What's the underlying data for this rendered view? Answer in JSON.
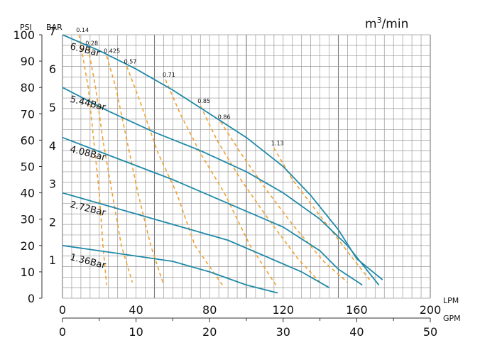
{
  "chart_data": {
    "type": "line",
    "units": {
      "psi": "PSI",
      "bar": "BAR",
      "lpm": "LPM",
      "gpm": "GPM",
      "air_base": "m",
      "air_sup": "3",
      "air_tail": "/min"
    },
    "x_lpm_ticks": [
      "0",
      "40",
      "80",
      "120",
      "160",
      "200"
    ],
    "x_gpm_ticks": [
      "0",
      "10",
      "20",
      "30",
      "40",
      "50"
    ],
    "y_psi_ticks": [
      "0",
      "10",
      "20",
      "30",
      "40",
      "50",
      "60",
      "70",
      "80",
      "90",
      "100"
    ],
    "y_bar_ticks": [
      "1",
      "2",
      "3",
      "4",
      "5",
      "6",
      "7"
    ],
    "xlim_lpm": [
      0,
      200
    ],
    "ylim_psi": [
      0,
      100
    ],
    "grid": true,
    "colors": {
      "pressure": "#1f8aa8",
      "air": "#f0a030",
      "grid": "#999999"
    },
    "series": [
      {
        "name": "6.9Bar",
        "points": [
          [
            0,
            100
          ],
          [
            20,
            94
          ],
          [
            40,
            87
          ],
          [
            60,
            79
          ],
          [
            80,
            70
          ],
          [
            100,
            61
          ],
          [
            120,
            50
          ],
          [
            135,
            39
          ],
          [
            150,
            26
          ],
          [
            160,
            15
          ],
          [
            174,
            7
          ]
        ]
      },
      {
        "name": "5.44Bar",
        "points": [
          [
            0,
            80
          ],
          [
            25,
            71
          ],
          [
            50,
            63
          ],
          [
            75,
            56
          ],
          [
            100,
            48
          ],
          [
            120,
            40
          ],
          [
            140,
            30
          ],
          [
            155,
            20
          ],
          [
            172,
            5
          ]
        ]
      },
      {
        "name": "4.08Bar",
        "points": [
          [
            0,
            61
          ],
          [
            30,
            53
          ],
          [
            60,
            45
          ],
          [
            90,
            36
          ],
          [
            120,
            27
          ],
          [
            140,
            18
          ],
          [
            150,
            11
          ],
          [
            163,
            5
          ]
        ]
      },
      {
        "name": "2.72Bar",
        "points": [
          [
            0,
            40
          ],
          [
            30,
            34
          ],
          [
            60,
            28
          ],
          [
            90,
            22
          ],
          [
            110,
            16
          ],
          [
            130,
            10
          ],
          [
            145,
            4
          ]
        ]
      },
      {
        "name": "1.36Bar",
        "points": [
          [
            0,
            20
          ],
          [
            30,
            17
          ],
          [
            60,
            14
          ],
          [
            80,
            10
          ],
          [
            100,
            5
          ],
          [
            117,
            2
          ]
        ]
      }
    ],
    "air_series": [
      {
        "name": "0.14",
        "points": [
          [
            9,
            100
          ],
          [
            14,
            80
          ],
          [
            17,
            60
          ],
          [
            20,
            40
          ],
          [
            22,
            20
          ],
          [
            24,
            5
          ]
        ]
      },
      {
        "name": "0.28",
        "points": [
          [
            14,
            95
          ],
          [
            18,
            80
          ],
          [
            22,
            60
          ],
          [
            27,
            40
          ],
          [
            32,
            20
          ],
          [
            38,
            6
          ]
        ]
      },
      {
        "name": "0.425",
        "points": [
          [
            24,
            92
          ],
          [
            29,
            80
          ],
          [
            35,
            60
          ],
          [
            41,
            40
          ],
          [
            48,
            20
          ],
          [
            55,
            5
          ]
        ]
      },
      {
        "name": "0.57",
        "points": [
          [
            35,
            88
          ],
          [
            42,
            75
          ],
          [
            52,
            55
          ],
          [
            62,
            40
          ],
          [
            72,
            20
          ],
          [
            88,
            4
          ]
        ]
      },
      {
        "name": "0.71",
        "points": [
          [
            56,
            83
          ],
          [
            64,
            70
          ],
          [
            75,
            55
          ],
          [
            88,
            40
          ],
          [
            102,
            20
          ],
          [
            117,
            4
          ]
        ]
      },
      {
        "name": "0.85",
        "points": [
          [
            75,
            73
          ],
          [
            84,
            60
          ],
          [
            97,
            45
          ],
          [
            112,
            30
          ],
          [
            128,
            15
          ],
          [
            140,
            6
          ]
        ]
      },
      {
        "name": "0.86",
        "points": [
          [
            86,
            67
          ],
          [
            97,
            55
          ],
          [
            110,
            42
          ],
          [
            125,
            28
          ],
          [
            142,
            14
          ],
          [
            155,
            6
          ]
        ]
      },
      {
        "name": "1.13",
        "points": [
          [
            115,
            57
          ],
          [
            125,
            45
          ],
          [
            136,
            35
          ],
          [
            147,
            25
          ],
          [
            158,
            15
          ],
          [
            167,
            7
          ]
        ]
      }
    ]
  }
}
